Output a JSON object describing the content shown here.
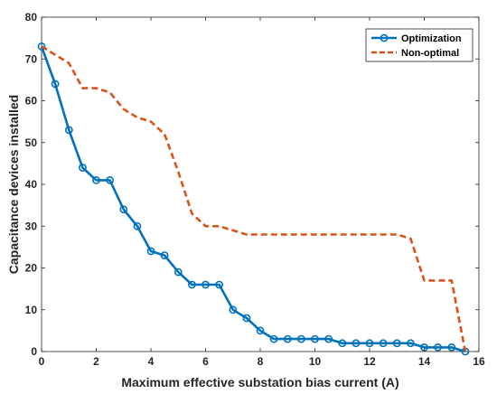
{
  "chart_data": {
    "type": "line",
    "title": "",
    "xlabel": "Maximum effective substation bias current (A)",
    "ylabel": "Capacitance devices installed",
    "xlim": [
      0,
      16
    ],
    "ylim": [
      0,
      80
    ],
    "xticks": [
      0,
      2,
      4,
      6,
      8,
      10,
      12,
      14,
      16
    ],
    "yticks": [
      0,
      10,
      20,
      30,
      40,
      50,
      60,
      70,
      80
    ],
    "grid": false,
    "legend_position": "top-right",
    "series": [
      {
        "name": "Optimization",
        "color": "#0072BD",
        "style": "solid-circle-markers",
        "x": [
          0,
          0.5,
          1,
          1.5,
          2,
          2.5,
          3,
          3.5,
          4,
          4.5,
          5,
          5.5,
          6,
          6.5,
          7,
          7.5,
          8,
          8.5,
          9,
          9.5,
          10,
          10.5,
          11,
          11.5,
          12,
          12.5,
          13,
          13.5,
          14,
          14.5,
          15,
          15.5
        ],
        "y": [
          73,
          64,
          53,
          44,
          41,
          41,
          34,
          30,
          24,
          23,
          19,
          16,
          16,
          16,
          10,
          8,
          5,
          3,
          3,
          3,
          3,
          3,
          2,
          2,
          2,
          2,
          2,
          2,
          1,
          1,
          1,
          0
        ]
      },
      {
        "name": "Non-optimal",
        "color": "#D95319",
        "style": "dashed",
        "x": [
          0,
          0.5,
          1,
          1.5,
          2,
          2.5,
          3,
          3.5,
          4,
          4.5,
          5,
          5.5,
          6,
          6.5,
          7,
          7.5,
          8,
          8.5,
          9,
          9.5,
          10,
          10.5,
          11,
          11.5,
          12,
          12.5,
          13,
          13.5,
          14,
          14.5,
          15,
          15.5
        ],
        "y": [
          73,
          71,
          69,
          63,
          63,
          62,
          58,
          56,
          55,
          52,
          43,
          33,
          30,
          30,
          29,
          28,
          28,
          28,
          28,
          28,
          28,
          28,
          28,
          28,
          28,
          28,
          28,
          27,
          17,
          17,
          17,
          0
        ]
      }
    ]
  }
}
